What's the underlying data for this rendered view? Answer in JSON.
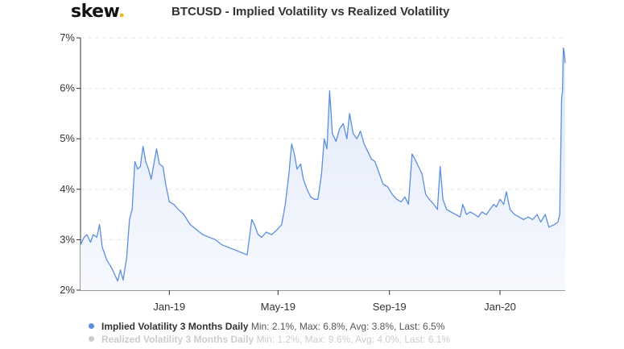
{
  "brand": {
    "name": "skew",
    "dot": "."
  },
  "chart_data": {
    "type": "area",
    "title": "BTCUSD - Implied Volatility vs Realized Volatility",
    "y_unit": "%",
    "ylim": [
      2,
      7
    ],
    "y_ticks": [
      {
        "value": 2,
        "label": "2%"
      },
      {
        "value": 3,
        "label": "3%"
      },
      {
        "value": 4,
        "label": "4%"
      },
      {
        "value": 5,
        "label": "5%"
      },
      {
        "value": 6,
        "label": "6%"
      },
      {
        "value": 7,
        "label": "7%"
      }
    ],
    "xlim": [
      "2018-09-25",
      "2020-03-13"
    ],
    "x_ticks": [
      {
        "date": "2019-01-01",
        "label": "Jan-19"
      },
      {
        "date": "2019-05-01",
        "label": "May-19"
      },
      {
        "date": "2019-09-01",
        "label": "Sep-19"
      },
      {
        "date": "2020-01-01",
        "label": "Jan-20"
      }
    ],
    "grid": {
      "horizontal": true,
      "vertical": false
    },
    "legend_position": "bottom",
    "colors": {
      "implied": "#5b8fdd",
      "realized": "#cccccc",
      "area_top": "#dfe8f9",
      "area_bottom": "#f7f9fe"
    },
    "series": [
      {
        "name": "Implied Volatility 3 Months Daily",
        "stats": "Min: 2.1%, Max: 6.8%, Avg: 3.8%, Last: 6.5%",
        "visible": true,
        "points": [
          [
            "2018-09-25",
            2.9
          ],
          [
            "2018-09-29",
            3.05
          ],
          [
            "2018-10-02",
            3.1
          ],
          [
            "2018-10-06",
            2.95
          ],
          [
            "2018-10-09",
            3.1
          ],
          [
            "2018-10-13",
            3.05
          ],
          [
            "2018-10-16",
            3.3
          ],
          [
            "2018-10-19",
            2.85
          ],
          [
            "2018-10-24",
            2.6
          ],
          [
            "2018-10-29",
            2.45
          ],
          [
            "2018-11-02",
            2.3
          ],
          [
            "2018-11-05",
            2.18
          ],
          [
            "2018-11-08",
            2.4
          ],
          [
            "2018-11-11",
            2.2
          ],
          [
            "2018-11-15",
            2.65
          ],
          [
            "2018-11-18",
            3.4
          ],
          [
            "2018-11-21",
            3.6
          ],
          [
            "2018-11-24",
            4.55
          ],
          [
            "2018-11-27",
            4.4
          ],
          [
            "2018-11-30",
            4.45
          ],
          [
            "2018-12-03",
            4.85
          ],
          [
            "2018-12-06",
            4.55
          ],
          [
            "2018-12-09",
            4.4
          ],
          [
            "2018-12-12",
            4.2
          ],
          [
            "2018-12-15",
            4.5
          ],
          [
            "2018-12-18",
            4.8
          ],
          [
            "2018-12-21",
            4.5
          ],
          [
            "2018-12-25",
            4.45
          ],
          [
            "2018-12-28",
            4.1
          ],
          [
            "2019-01-01",
            3.75
          ],
          [
            "2019-01-06",
            3.7
          ],
          [
            "2019-01-11",
            3.6
          ],
          [
            "2019-01-17",
            3.5
          ],
          [
            "2019-01-24",
            3.3
          ],
          [
            "2019-01-31",
            3.2
          ],
          [
            "2019-02-07",
            3.1
          ],
          [
            "2019-02-14",
            3.05
          ],
          [
            "2019-02-21",
            3.0
          ],
          [
            "2019-02-28",
            2.9
          ],
          [
            "2019-03-07",
            2.85
          ],
          [
            "2019-03-14",
            2.8
          ],
          [
            "2019-03-21",
            2.75
          ],
          [
            "2019-03-28",
            2.7
          ],
          [
            "2019-04-02",
            3.4
          ],
          [
            "2019-04-05",
            3.3
          ],
          [
            "2019-04-09",
            3.1
          ],
          [
            "2019-04-13",
            3.05
          ],
          [
            "2019-04-18",
            3.15
          ],
          [
            "2019-04-24",
            3.1
          ],
          [
            "2019-04-30",
            3.2
          ],
          [
            "2019-05-05",
            3.3
          ],
          [
            "2019-05-09",
            3.7
          ],
          [
            "2019-05-13",
            4.3
          ],
          [
            "2019-05-16",
            4.9
          ],
          [
            "2019-05-19",
            4.7
          ],
          [
            "2019-05-22",
            4.4
          ],
          [
            "2019-05-26",
            4.5
          ],
          [
            "2019-05-29",
            4.2
          ],
          [
            "2019-06-02",
            4.0
          ],
          [
            "2019-06-06",
            3.85
          ],
          [
            "2019-06-10",
            3.8
          ],
          [
            "2019-06-14",
            3.8
          ],
          [
            "2019-06-18",
            4.3
          ],
          [
            "2019-06-21",
            5.0
          ],
          [
            "2019-06-24",
            4.8
          ],
          [
            "2019-06-27",
            5.95
          ],
          [
            "2019-06-30",
            5.1
          ],
          [
            "2019-07-04",
            4.95
          ],
          [
            "2019-07-08",
            5.2
          ],
          [
            "2019-07-12",
            5.3
          ],
          [
            "2019-07-16",
            5.0
          ],
          [
            "2019-07-19",
            5.5
          ],
          [
            "2019-07-23",
            5.1
          ],
          [
            "2019-07-27",
            5.0
          ],
          [
            "2019-07-31",
            5.15
          ],
          [
            "2019-08-04",
            4.9
          ],
          [
            "2019-08-08",
            4.75
          ],
          [
            "2019-08-12",
            4.6
          ],
          [
            "2019-08-16",
            4.55
          ],
          [
            "2019-08-20",
            4.35
          ],
          [
            "2019-08-25",
            4.1
          ],
          [
            "2019-08-30",
            4.05
          ],
          [
            "2019-09-04",
            3.9
          ],
          [
            "2019-09-09",
            3.8
          ],
          [
            "2019-09-14",
            3.75
          ],
          [
            "2019-09-18",
            3.85
          ],
          [
            "2019-09-22",
            3.7
          ],
          [
            "2019-09-26",
            4.7
          ],
          [
            "2019-09-29",
            4.6
          ],
          [
            "2019-10-03",
            4.45
          ],
          [
            "2019-10-07",
            4.3
          ],
          [
            "2019-10-11",
            3.9
          ],
          [
            "2019-10-15",
            3.8
          ],
          [
            "2019-10-20",
            3.7
          ],
          [
            "2019-10-24",
            3.6
          ],
          [
            "2019-10-27",
            4.45
          ],
          [
            "2019-10-30",
            3.8
          ],
          [
            "2019-11-03",
            3.6
          ],
          [
            "2019-11-08",
            3.55
          ],
          [
            "2019-11-13",
            3.5
          ],
          [
            "2019-11-18",
            3.45
          ],
          [
            "2019-11-21",
            3.7
          ],
          [
            "2019-11-25",
            3.5
          ],
          [
            "2019-11-29",
            3.55
          ],
          [
            "2019-12-04",
            3.5
          ],
          [
            "2019-12-08",
            3.45
          ],
          [
            "2019-12-12",
            3.55
          ],
          [
            "2019-12-17",
            3.5
          ],
          [
            "2019-12-21",
            3.6
          ],
          [
            "2019-12-25",
            3.7
          ],
          [
            "2019-12-28",
            3.65
          ],
          [
            "2020-01-01",
            3.8
          ],
          [
            "2020-01-05",
            3.7
          ],
          [
            "2020-01-08",
            3.95
          ],
          [
            "2020-01-12",
            3.6
          ],
          [
            "2020-01-17",
            3.5
          ],
          [
            "2020-01-22",
            3.45
          ],
          [
            "2020-01-27",
            3.4
          ],
          [
            "2020-02-01",
            3.45
          ],
          [
            "2020-02-06",
            3.4
          ],
          [
            "2020-02-11",
            3.5
          ],
          [
            "2020-02-15",
            3.35
          ],
          [
            "2020-02-20",
            3.5
          ],
          [
            "2020-02-24",
            3.25
          ],
          [
            "2020-03-01",
            3.3
          ],
          [
            "2020-03-05",
            3.35
          ],
          [
            "2020-03-07",
            3.5
          ],
          [
            "2020-03-09",
            5.8
          ],
          [
            "2020-03-10",
            5.95
          ],
          [
            "2020-03-11",
            6.8
          ],
          [
            "2020-03-12",
            6.7
          ],
          [
            "2020-03-13",
            6.5
          ]
        ]
      },
      {
        "name": "Realized Volatility 3 Months Daily",
        "stats": "Min: 1.2%, Max: 9.6%, Avg: 4.0%, Last: 6.1%",
        "visible": false,
        "points": []
      }
    ]
  }
}
